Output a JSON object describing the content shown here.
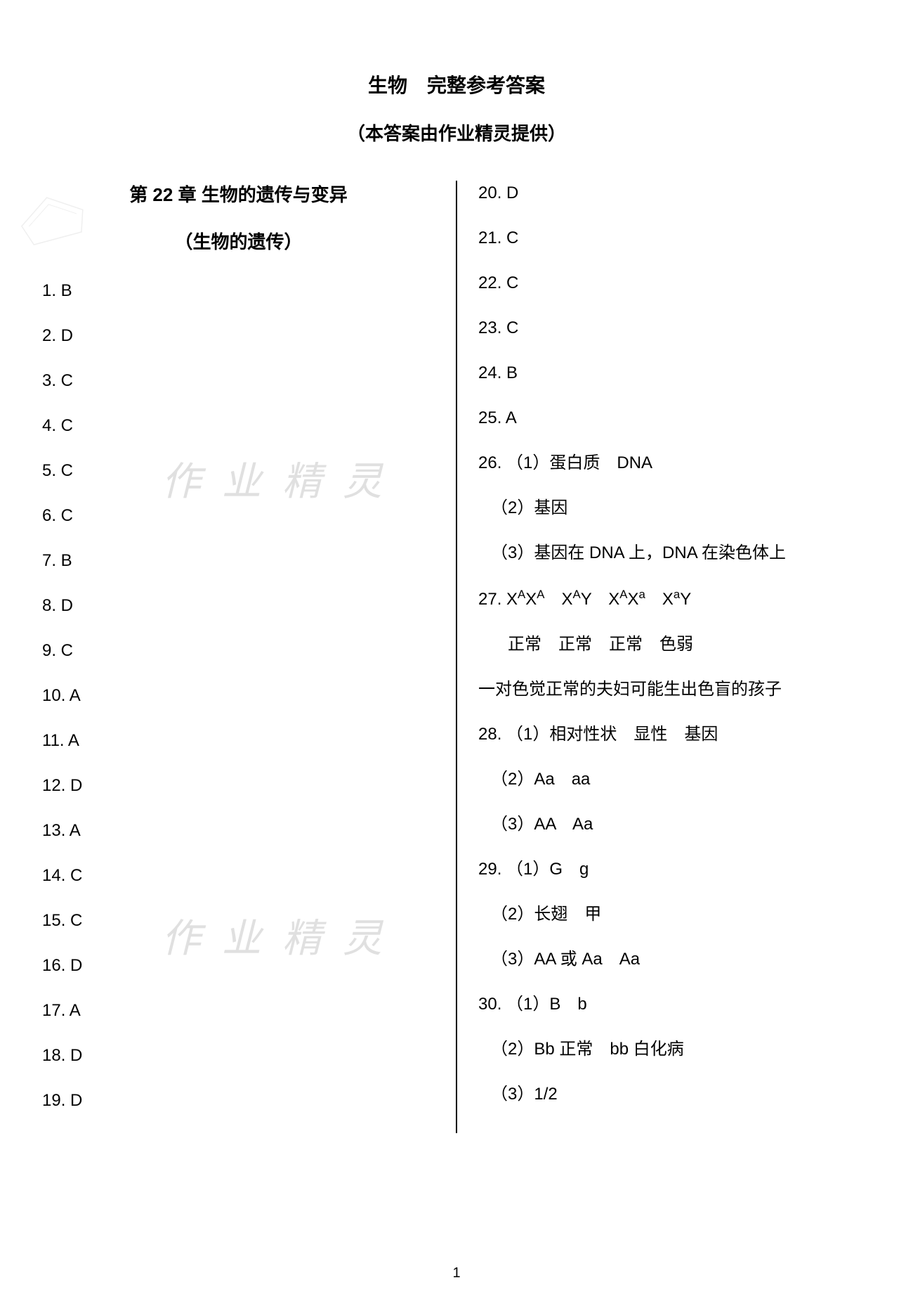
{
  "header": {
    "title": "生物　完整参考答案",
    "subtitle": "（本答案由作业精灵提供）"
  },
  "chapter": {
    "title": "第 22 章  生物的遗传与变异",
    "section": "（生物的遗传）"
  },
  "leftColumn": [
    "1.  B",
    "2.  D",
    "3.  C",
    "4.  C",
    "5.  C",
    "6.  C",
    "7.  B",
    "8.  D",
    "9.  C",
    "10.  A",
    "11.  A",
    "12.  D",
    "13.  A",
    "14.  C",
    "15.  C",
    "16.  D",
    "17.  A",
    "18.  D",
    "19.  D"
  ],
  "rightColumn": [
    {
      "text": "20.  D",
      "indent": 0
    },
    {
      "text": "21.  C",
      "indent": 0
    },
    {
      "text": "22.  C",
      "indent": 0
    },
    {
      "text": "23.  C",
      "indent": 0
    },
    {
      "text": "24.  B",
      "indent": 0
    },
    {
      "text": "25.  A",
      "indent": 0
    },
    {
      "text": "26. （1）蛋白质　DNA",
      "indent": 0
    },
    {
      "text": "（2）基因",
      "indent": 1
    },
    {
      "text": "（3）基因在 DNA 上，DNA 在染色体上",
      "indent": 1
    },
    {
      "text": "27.  X<sup>A</sup>X<sup>A</sup>　X<sup>A</sup>Y　X<sup>A</sup>X<sup>a</sup>　X<sup>a</sup>Y",
      "indent": 0,
      "html": true
    },
    {
      "text": "正常　正常　正常　色弱",
      "indent": 2
    },
    {
      "text": "一对色觉正常的夫妇可能生出色盲的孩子",
      "indent": 0
    },
    {
      "text": "28. （1）相对性状　显性　基因",
      "indent": 0
    },
    {
      "text": "（2）Aa　aa",
      "indent": 1
    },
    {
      "text": "（3）AA　Aa",
      "indent": 1
    },
    {
      "text": "29. （1）G　g",
      "indent": 0
    },
    {
      "text": "（2）长翅　甲",
      "indent": 1
    },
    {
      "text": "（3）AA 或 Aa　Aa",
      "indent": 1
    },
    {
      "text": "30. （1）B　b",
      "indent": 0
    },
    {
      "text": "（2）Bb 正常　bb 白化病",
      "indent": 1
    },
    {
      "text": "（3）1/2",
      "indent": 1
    }
  ],
  "watermark": "作 业 精 灵",
  "pageNumber": "1",
  "colors": {
    "text": "#000000",
    "background": "#ffffff",
    "watermark": "#e0e0e0"
  },
  "typography": {
    "titleFontSize": 28,
    "bodyFontSize": 24,
    "pageNumFontSize": 20
  }
}
